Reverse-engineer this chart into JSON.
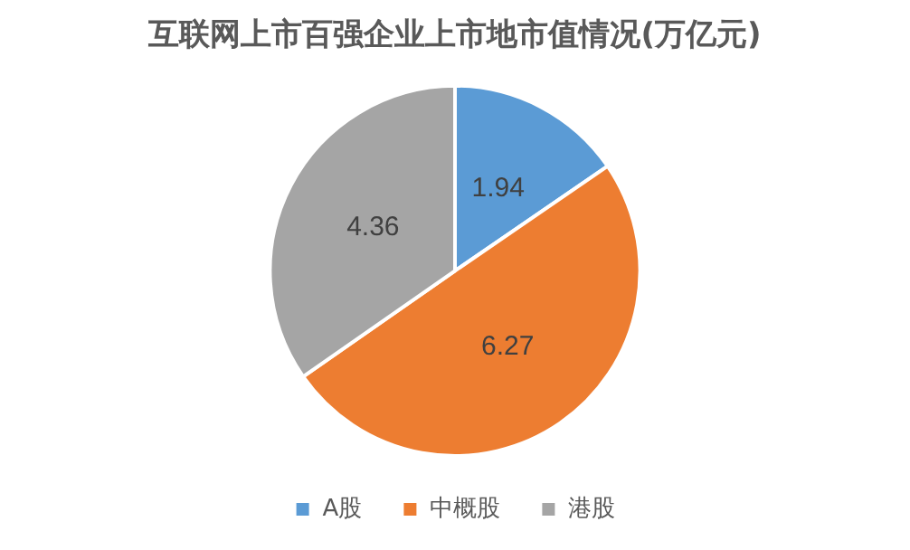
{
  "chart_data": {
    "type": "pie",
    "title": "互联网上市百强企业上市地市值情况(万亿元)",
    "categories": [
      "A股",
      "中概股",
      "港股"
    ],
    "values": [
      1.94,
      6.27,
      4.36
    ],
    "colors": [
      "#5b9bd5",
      "#ed7d31",
      "#a5a5a5"
    ],
    "data_labels": true,
    "legend": "bottom"
  }
}
